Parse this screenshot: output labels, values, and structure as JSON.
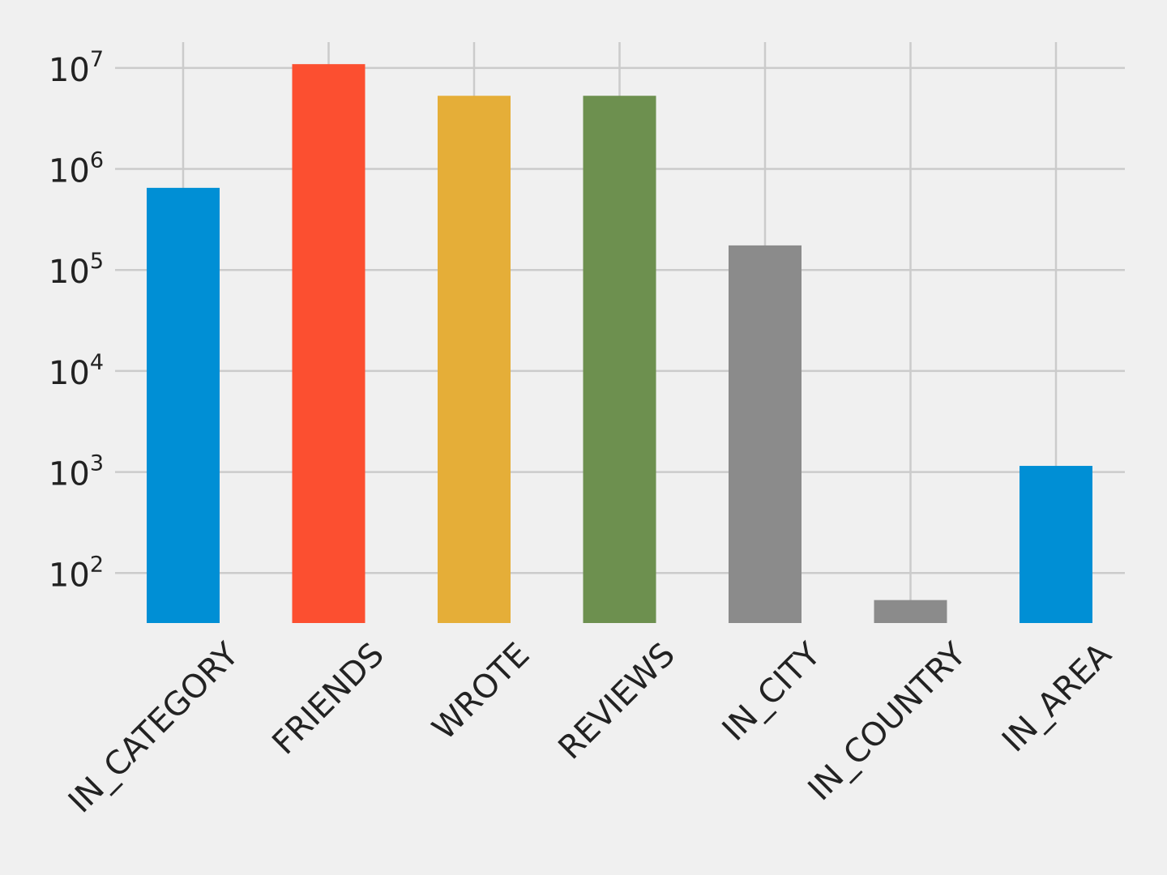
{
  "chart_data": {
    "type": "bar",
    "title": "",
    "xlabel": "",
    "ylabel": "",
    "y_scale": "log",
    "ylim": [
      32,
      18000000
    ],
    "grid": true,
    "legend": "none",
    "categories": [
      "IN_CATEGORY",
      "FRIENDS",
      "WROTE",
      "REVIEWS",
      "IN_CITY",
      "IN_COUNTRY",
      "IN_AREA"
    ],
    "values": [
      650000,
      10900000,
      5300000,
      5300000,
      175000,
      54,
      1150
    ],
    "colors": [
      "#008fd5",
      "#fc4f30",
      "#e5ae38",
      "#6d904f",
      "#8b8b8b",
      "#8b8b8b",
      "#008fd5"
    ],
    "y_ticks": [
      {
        "value": 100,
        "base": "10",
        "exp": "2"
      },
      {
        "value": 1000,
        "base": "10",
        "exp": "3"
      },
      {
        "value": 10000,
        "base": "10",
        "exp": "4"
      },
      {
        "value": 100000,
        "base": "10",
        "exp": "5"
      },
      {
        "value": 1000000,
        "base": "10",
        "exp": "6"
      },
      {
        "value": 10000000,
        "base": "10",
        "exp": "7"
      }
    ]
  }
}
